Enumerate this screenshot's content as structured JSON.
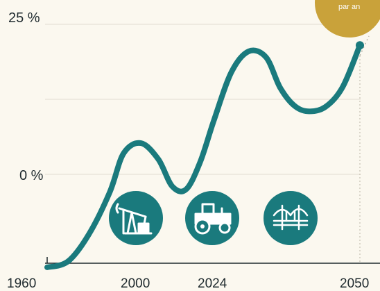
{
  "chart_data": {
    "type": "line",
    "x_ticks": [
      "1960",
      "2000",
      "2024",
      "2050"
    ],
    "y_ticks": [
      "25 %",
      "0 %"
    ],
    "series": [
      {
        "x": [
          1960,
          1966,
          1972,
          1978,
          1982,
          1987,
          1992,
          1996,
          2000,
          2004,
          2008,
          2013,
          2018,
          2023,
          2027,
          2031,
          2035,
          2040,
          2045,
          2050
        ],
        "y": [
          -15.5,
          -14.5,
          -10,
          -3,
          3.5,
          5.2,
          2.5,
          -2,
          -2.5,
          2,
          9,
          17,
          20.5,
          19.5,
          14.5,
          11.5,
          10.5,
          11.2,
          14.5,
          21.5
        ]
      }
    ],
    "xlim": [
      1960,
      2050
    ],
    "ylim": [
      -25,
      30
    ],
    "grid": true,
    "line_color": "#1a7a7d",
    "grid_color": "#e2ddd0"
  },
  "icons": [
    {
      "name": "oil-pump-icon",
      "color": "#1a7a7d"
    },
    {
      "name": "tractor-icon",
      "color": "#1a7a7d"
    },
    {
      "name": "bridge-icon",
      "color": "#1a7a7d"
    }
  ],
  "badge": {
    "text": "par an",
    "color": "#c9a23a"
  }
}
